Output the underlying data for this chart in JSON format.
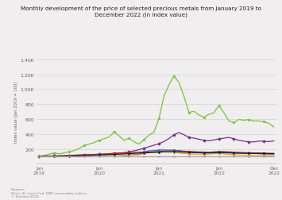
{
  "title": "Monthly development of the price of selected precious metals from January 2019 to\nDecember 2022 (in index value)",
  "ylabel": "Index value (Jan 2019 = 100)",
  "ylim": [
    0,
    1400
  ],
  "yticks": [
    200,
    400,
    600,
    800,
    1000,
    1200,
    1400
  ],
  "ytick_labels": [
    "200",
    "400",
    "600",
    "800",
    "1.00K",
    "1.20K",
    "1.40K"
  ],
  "source_text": "Sources:\nKitco; St. Louis Fed; BNP commodity indices\n© Statista 2022",
  "n_points": 48,
  "background_color": "#f0eeee",
  "series": {
    "palladium": {
      "color": "#7cc142",
      "marker": "o",
      "values": [
        100,
        112,
        130,
        148,
        135,
        148,
        162,
        178,
        205,
        245,
        265,
        285,
        315,
        338,
        360,
        430,
        375,
        315,
        345,
        295,
        265,
        325,
        385,
        425,
        610,
        910,
        1060,
        1180,
        1090,
        905,
        690,
        705,
        655,
        625,
        665,
        685,
        785,
        685,
        575,
        555,
        595,
        585,
        595,
        575,
        575,
        565,
        545,
        495
      ]
    },
    "rhodium": {
      "color": "#7b2d8b",
      "marker": "D",
      "values": [
        100,
        102,
        104,
        106,
        108,
        110,
        112,
        115,
        118,
        120,
        122,
        125,
        128,
        132,
        136,
        140,
        145,
        150,
        160,
        175,
        190,
        210,
        230,
        250,
        270,
        300,
        340,
        390,
        420,
        390,
        355,
        345,
        330,
        315,
        310,
        320,
        335,
        345,
        355,
        335,
        315,
        305,
        295,
        295,
        305,
        305,
        298,
        308
      ]
    },
    "gold": {
      "color": "#cc2222",
      "marker": "^",
      "values": [
        100,
        102,
        104,
        107,
        106,
        108,
        113,
        117,
        119,
        121,
        124,
        127,
        129,
        131,
        137,
        141,
        144,
        147,
        151,
        154,
        157,
        159,
        162,
        164,
        167,
        174,
        179,
        184,
        177,
        171,
        167,
        164,
        161,
        159,
        157,
        161,
        164,
        166,
        162,
        157,
        154,
        152,
        149,
        147,
        146,
        144,
        142,
        142
      ]
    },
    "silver": {
      "color": "#3478c8",
      "marker": "s",
      "values": [
        100,
        97,
        99,
        102,
        99,
        104,
        107,
        109,
        111,
        114,
        116,
        119,
        121,
        117,
        119,
        121,
        119,
        114,
        117,
        124,
        127,
        164,
        174,
        179,
        184,
        187,
        184,
        181,
        174,
        164,
        159,
        157,
        154,
        152,
        154,
        159,
        161,
        157,
        152,
        147,
        144,
        142,
        141,
        139,
        137,
        134,
        132,
        131
      ]
    },
    "platinum": {
      "color": "#e8a020",
      "marker": "o",
      "values": [
        100,
        97,
        96,
        99,
        98,
        101,
        103,
        106,
        108,
        111,
        113,
        115,
        117,
        114,
        116,
        119,
        117,
        112,
        114,
        119,
        122,
        139,
        149,
        154,
        157,
        161,
        157,
        154,
        147,
        139,
        134,
        132,
        129,
        127,
        131,
        137,
        139,
        134,
        127,
        122,
        119,
        117,
        115,
        114,
        112,
        111,
        109,
        109
      ]
    },
    "iridium": {
      "color": "#1a1a2e",
      "marker": "v",
      "values": [
        100,
        100,
        100,
        101,
        101,
        102,
        104,
        106,
        109,
        111,
        114,
        117,
        119,
        121,
        124,
        127,
        131,
        134,
        137,
        141,
        144,
        147,
        151,
        154,
        157,
        161,
        164,
        167,
        161,
        157,
        154,
        151,
        149,
        147,
        147,
        149,
        151,
        149,
        147,
        145,
        144,
        142,
        141,
        140,
        139,
        138,
        137,
        136
      ]
    },
    "ruthenium": {
      "color": "#aaaaaa",
      "marker": "x",
      "values": [
        100,
        100,
        100,
        100,
        100,
        100,
        100,
        100,
        100,
        100,
        100,
        100,
        100,
        100,
        100,
        100,
        100,
        100,
        100,
        100,
        100,
        100,
        100,
        100,
        100,
        100,
        100,
        100,
        100,
        100,
        100,
        100,
        100,
        100,
        100,
        100,
        100,
        100,
        100,
        100,
        100,
        100,
        100,
        100,
        100,
        100,
        100,
        100
      ]
    }
  }
}
